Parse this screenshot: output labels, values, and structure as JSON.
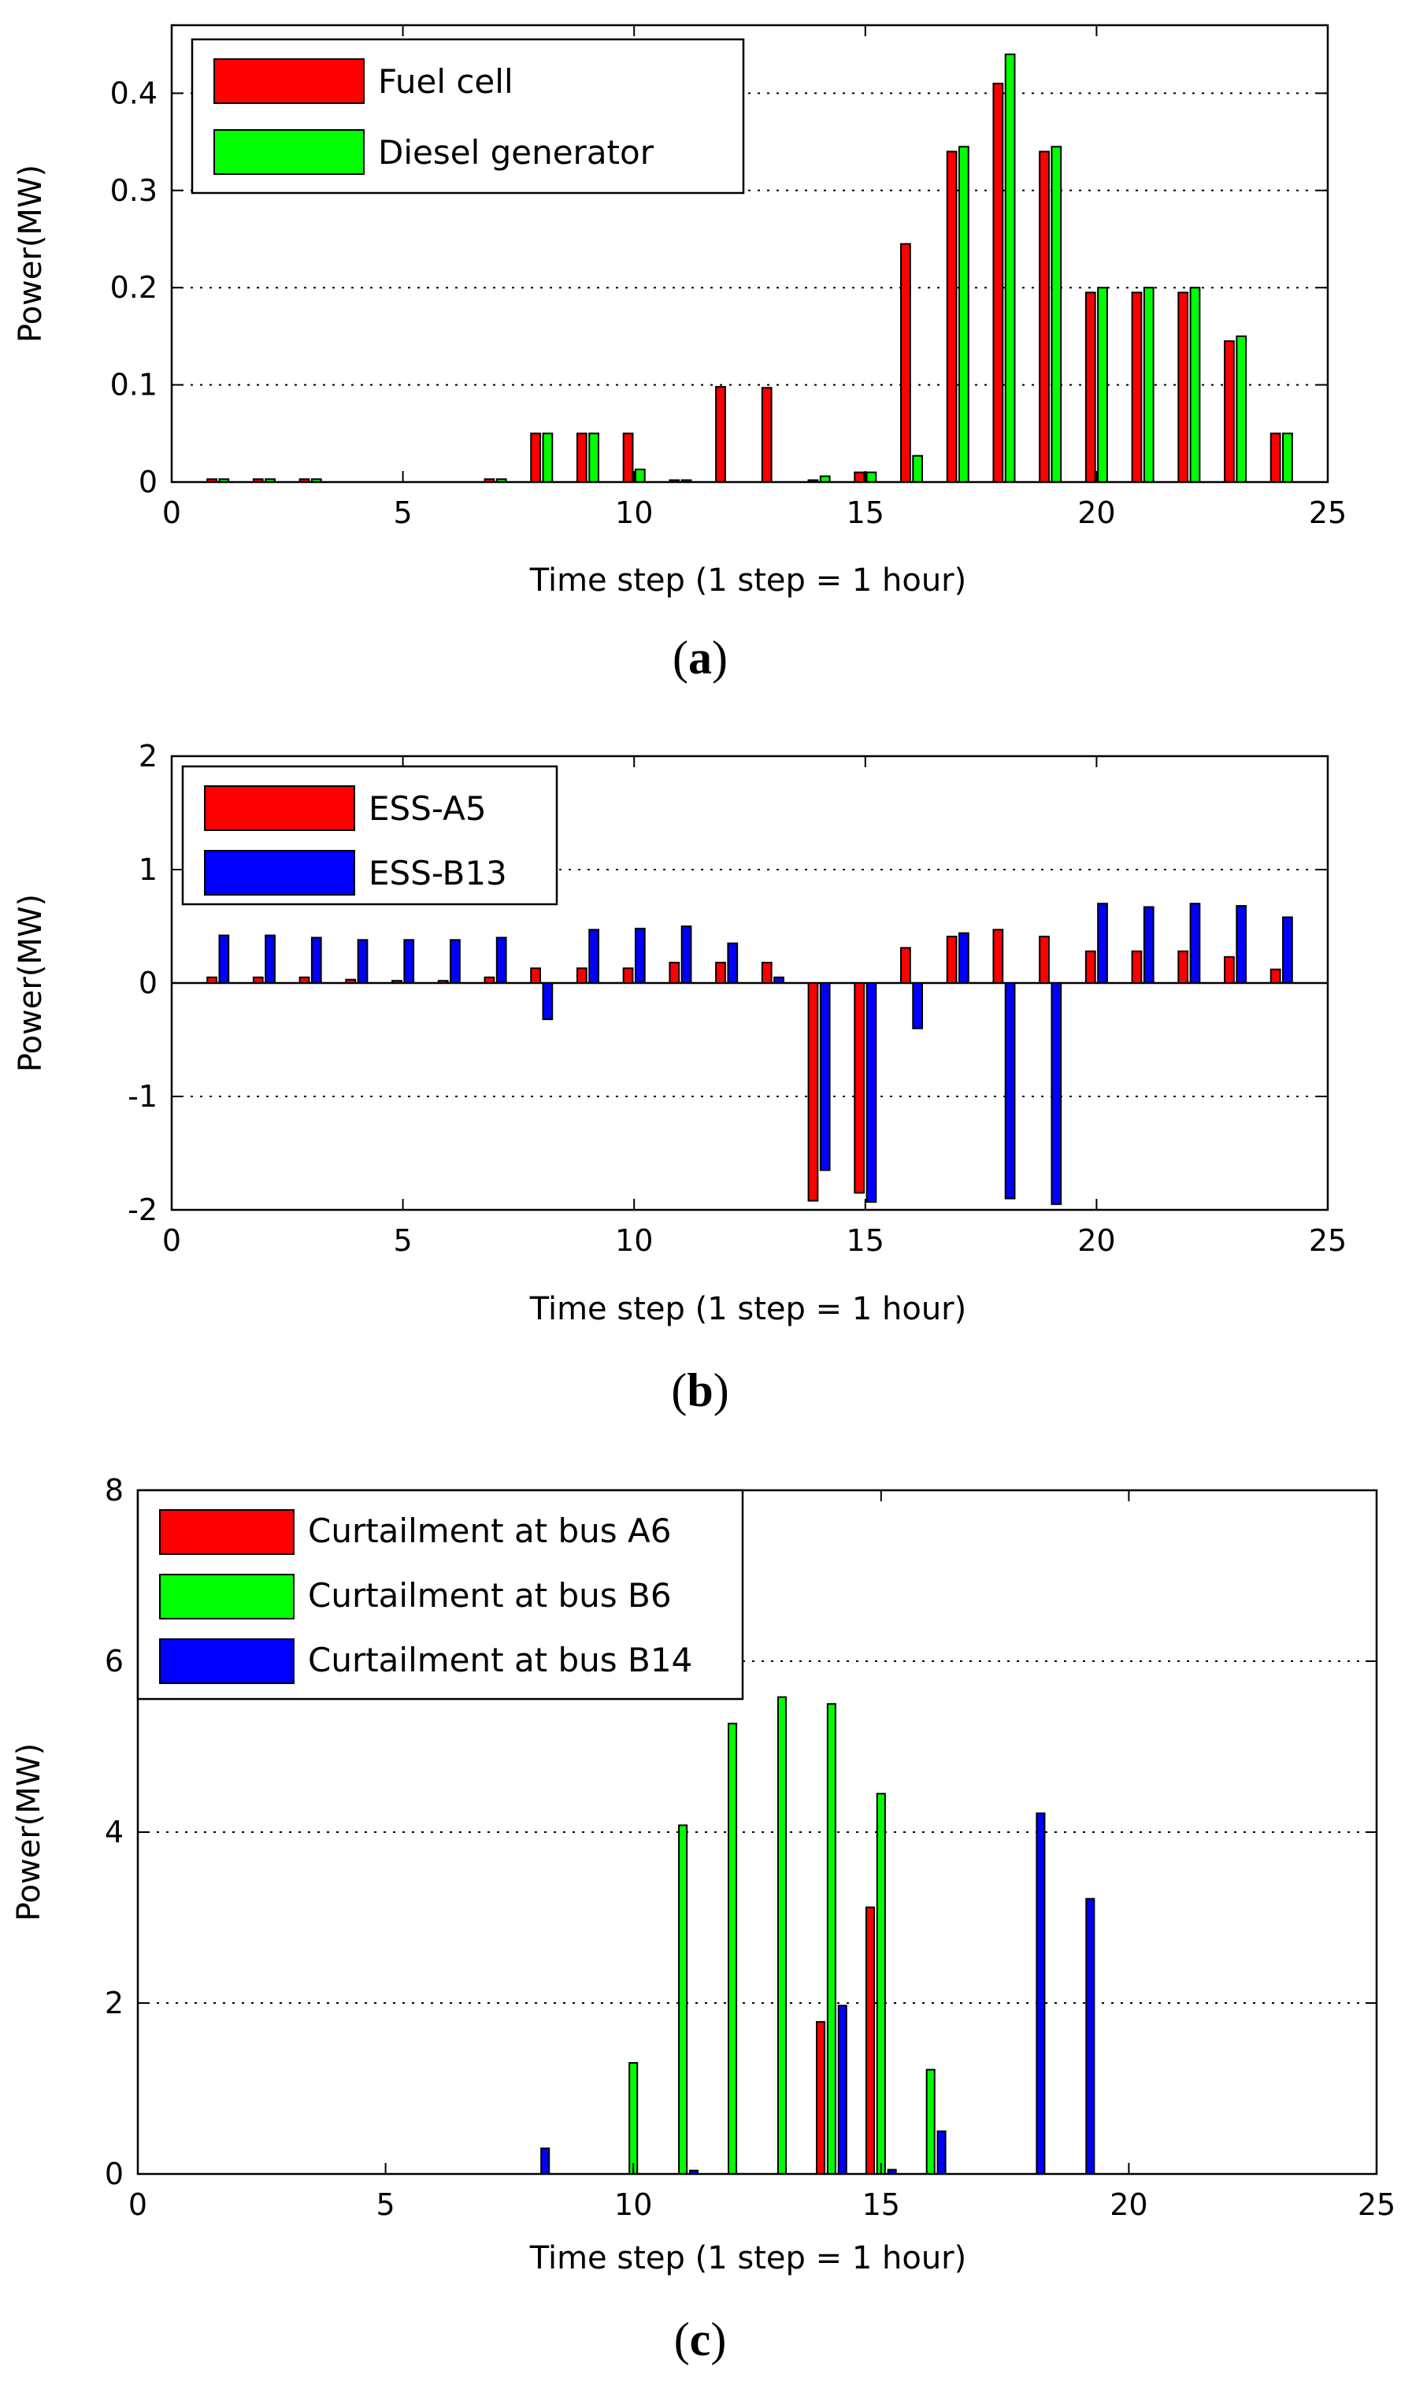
{
  "figure": {
    "panels": [
      "a",
      "b",
      "c"
    ]
  },
  "chart_data": [
    {
      "id": "a",
      "type": "bar",
      "panel_label": "a",
      "xlabel": "Time step (1 step = 1 hour)",
      "ylabel": "Power(MW)",
      "xlim": [
        0,
        25
      ],
      "ylim": [
        0,
        0.47
      ],
      "xticks": [
        0,
        5,
        10,
        15,
        20,
        25
      ],
      "yticks": [
        0,
        0.1,
        0.2,
        0.3,
        0.4
      ],
      "ytick_labels": [
        "0",
        "0.1",
        "0.2",
        "0.3",
        "0.4"
      ],
      "grid": "horizontal dotted",
      "legend_position": "top-left",
      "x": [
        1,
        2,
        3,
        4,
        5,
        6,
        7,
        8,
        9,
        10,
        11,
        12,
        13,
        14,
        15,
        16,
        17,
        18,
        19,
        20,
        21,
        22,
        23,
        24
      ],
      "series": [
        {
          "name": "Fuel cell",
          "color": "#ff0000",
          "values": [
            0.003,
            0.003,
            0.003,
            0,
            0,
            0,
            0.003,
            0.05,
            0.05,
            0.05,
            0.002,
            0.098,
            0.097,
            0.002,
            0.01,
            0.245,
            0.34,
            0.41,
            0.34,
            0.195,
            0.195,
            0.195,
            0.145,
            0.05
          ]
        },
        {
          "name": "Diesel generator",
          "color": "#00ff00",
          "values": [
            0.003,
            0.003,
            0.003,
            0,
            0,
            0,
            0.003,
            0.05,
            0.05,
            0.013,
            0.002,
            0,
            0,
            0.006,
            0.01,
            0.027,
            0.345,
            0.44,
            0.345,
            0.2,
            0.2,
            0.2,
            0.15,
            0.05
          ]
        }
      ]
    },
    {
      "id": "b",
      "type": "bar",
      "panel_label": "b",
      "xlabel": "Time step (1 step = 1 hour)",
      "ylabel": "Power(MW)",
      "xlim": [
        0,
        25
      ],
      "ylim": [
        -2,
        2
      ],
      "xticks": [
        0,
        5,
        10,
        15,
        20,
        25
      ],
      "yticks": [
        -2,
        -1,
        0,
        1,
        2
      ],
      "ytick_labels": [
        "-2",
        "-1",
        "0",
        "1",
        "2"
      ],
      "grid": "horizontal dotted",
      "legend_position": "top-left",
      "x": [
        1,
        2,
        3,
        4,
        5,
        6,
        7,
        8,
        9,
        10,
        11,
        12,
        13,
        14,
        15,
        16,
        17,
        18,
        19,
        20,
        21,
        22,
        23,
        24
      ],
      "series": [
        {
          "name": "ESS-A5",
          "color": "#ff0000",
          "values": [
            0.05,
            0.05,
            0.05,
            0.03,
            0.02,
            0.02,
            0.05,
            0.13,
            0.13,
            0.13,
            0.18,
            0.18,
            0.18,
            -1.92,
            -1.85,
            0.31,
            0.41,
            0.47,
            0.41,
            0.28,
            0.28,
            0.28,
            0.23,
            0.12
          ]
        },
        {
          "name": "ESS-B13",
          "color": "#0000ff",
          "values": [
            0.42,
            0.42,
            0.4,
            0.38,
            0.38,
            0.38,
            0.4,
            -0.32,
            0.47,
            0.48,
            0.5,
            0.35,
            0.05,
            -1.65,
            -1.93,
            -0.4,
            0.44,
            -1.9,
            -1.95,
            0.7,
            0.67,
            0.7,
            0.68,
            0.58
          ]
        }
      ]
    },
    {
      "id": "c",
      "type": "bar",
      "panel_label": "c",
      "xlabel": "Time step (1 step = 1 hour)",
      "ylabel": "Power(MW)",
      "xlim": [
        0,
        25
      ],
      "ylim": [
        0,
        8
      ],
      "xticks": [
        0,
        5,
        10,
        15,
        20,
        25
      ],
      "yticks": [
        0,
        2,
        4,
        6,
        8
      ],
      "ytick_labels": [
        "0",
        "2",
        "4",
        "6",
        "8"
      ],
      "grid": "horizontal dotted",
      "legend_position": "top-left",
      "x": [
        1,
        2,
        3,
        4,
        5,
        6,
        7,
        8,
        9,
        10,
        11,
        12,
        13,
        14,
        15,
        16,
        17,
        18,
        19,
        20,
        21,
        22,
        23,
        24
      ],
      "series": [
        {
          "name": "Curtailment at bus A6",
          "color": "#ff0000",
          "values": [
            0,
            0,
            0,
            0,
            0,
            0,
            0,
            0,
            0,
            0,
            0,
            0,
            0,
            1.78,
            3.12,
            0,
            0,
            0,
            0,
            0,
            0,
            0,
            0,
            0
          ]
        },
        {
          "name": "Curtailment at bus B6",
          "color": "#00ff00",
          "values": [
            0,
            0,
            0,
            0,
            0,
            0,
            0,
            0,
            0,
            1.3,
            4.08,
            5.27,
            5.58,
            5.5,
            4.45,
            1.22,
            0,
            0,
            0,
            0,
            0,
            0,
            0,
            0
          ]
        },
        {
          "name": "Curtailment at bus B14",
          "color": "#0000ff",
          "values": [
            0,
            0,
            0,
            0,
            0,
            0,
            0,
            0.3,
            0,
            0,
            0.04,
            0,
            0,
            1.97,
            0.05,
            0.5,
            0,
            4.22,
            3.22,
            0,
            0,
            0,
            0,
            0
          ]
        }
      ]
    }
  ]
}
